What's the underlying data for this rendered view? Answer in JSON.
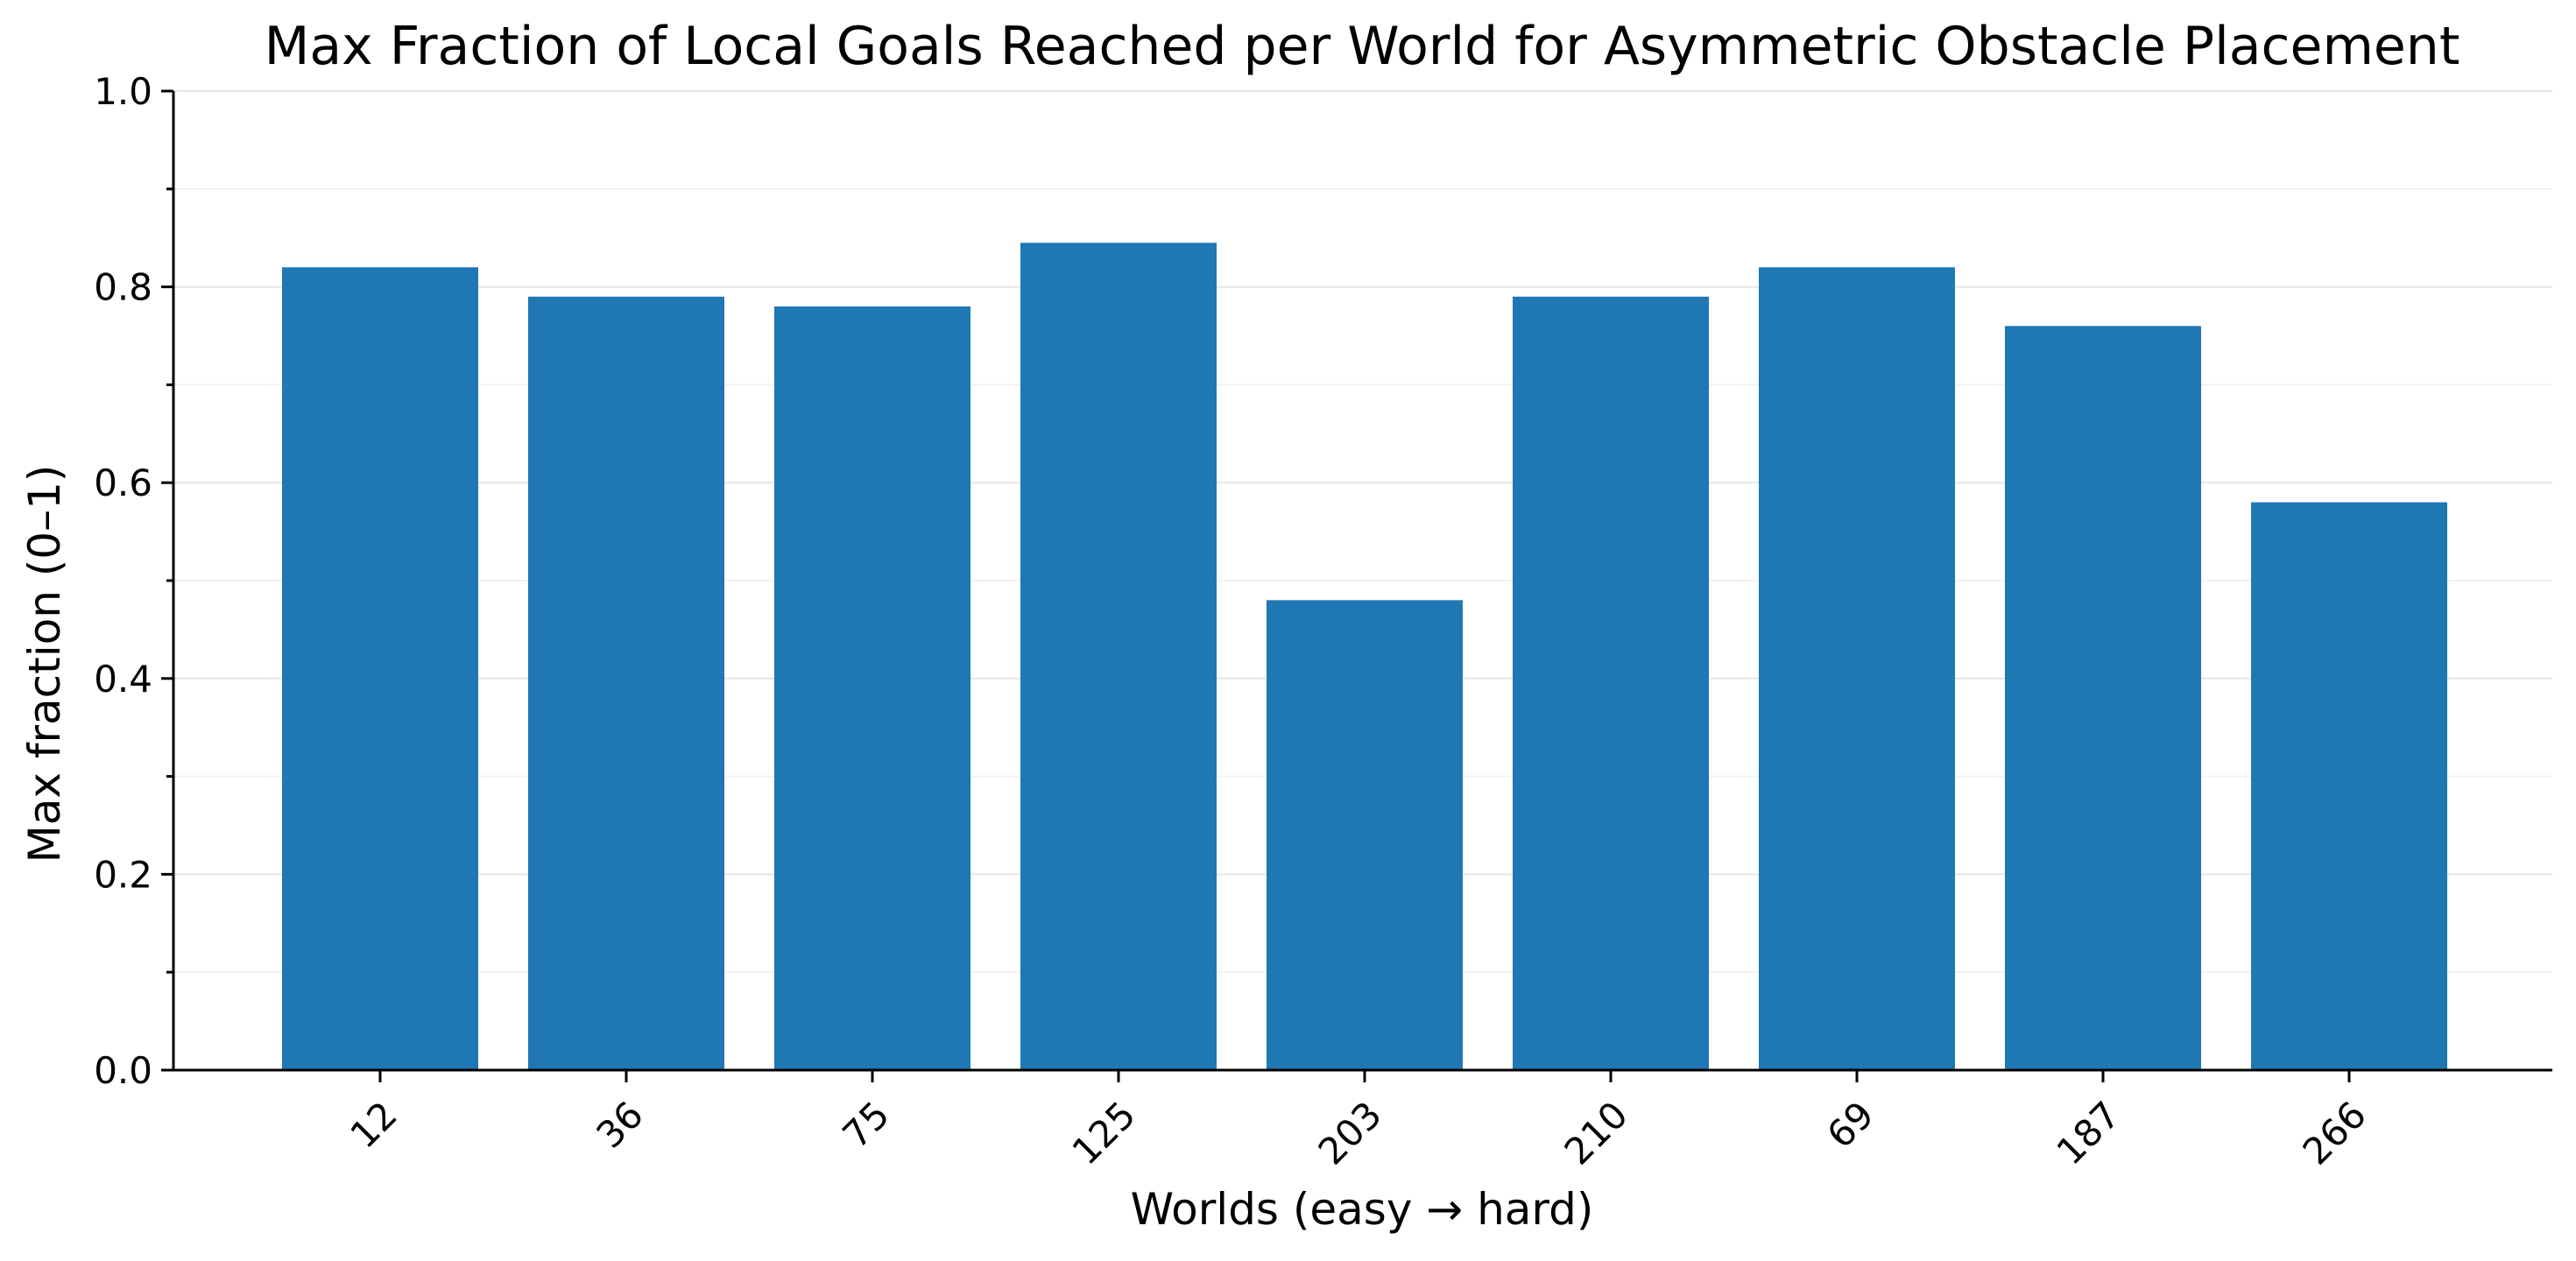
{
  "chart_data": {
    "type": "bar",
    "title": "Max Fraction of Local Goals Reached per World for Asymmetric Obstacle Placement",
    "xlabel": "Worlds (easy → hard)",
    "ylabel": "Max fraction (0–1)",
    "categories": [
      "12",
      "36",
      "75",
      "125",
      "203",
      "210",
      "69",
      "187",
      "266"
    ],
    "values": [
      0.82,
      0.79,
      0.78,
      0.845,
      0.48,
      0.79,
      0.82,
      0.76,
      0.58
    ],
    "ylim": [
      0,
      1
    ],
    "yticks": [
      "0.0",
      "0.2",
      "0.4",
      "0.6",
      "0.8",
      "1.0"
    ],
    "grid": "y",
    "legend": "none",
    "colors": {
      "bar": "#1f77b4",
      "axis": "#000000",
      "grid": "#e6e6e6"
    }
  }
}
